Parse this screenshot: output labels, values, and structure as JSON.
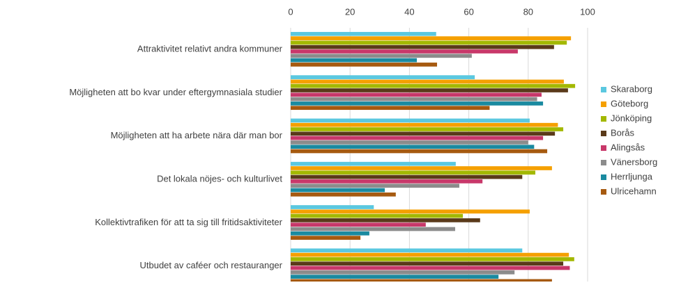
{
  "chart_data": {
    "type": "barh",
    "categories": [
      "Attraktivitet relativt andra kommuner",
      "Möjligheten att bo kvar under eftergymnasiala studier",
      "Möjligheten att ha arbete nära där man bor",
      "Det lokala nöjes- och kulturlivet",
      "Kollektivtrafiken för att ta sig till fritidsaktiviteter",
      "Utbudet av caféer och restauranger"
    ],
    "series": [
      {
        "name": "Skaraborg",
        "color": "#5bc8e0",
        "values": [
          49,
          62,
          80.5,
          55.6,
          28,
          78
        ]
      },
      {
        "name": "Göteborg",
        "color": "#f5a000",
        "values": [
          94.4,
          92,
          90,
          88,
          80.5,
          93.7
        ]
      },
      {
        "name": "Jönköping",
        "color": "#a3b800",
        "values": [
          93,
          95.8,
          91.8,
          82.4,
          58,
          95.5
        ]
      },
      {
        "name": "Borås",
        "color": "#5a3a1a",
        "values": [
          88.7,
          93.4,
          89,
          78,
          63.8,
          91.8
        ]
      },
      {
        "name": "Alingsås",
        "color": "#c8386a",
        "values": [
          76.5,
          84.5,
          85,
          64.6,
          45.5,
          94
        ]
      },
      {
        "name": "Vänersborg",
        "color": "#8c8c8c",
        "values": [
          61,
          83,
          80,
          56.8,
          55.4,
          75.4
        ]
      },
      {
        "name": "Herrljunga",
        "color": "#1a8aa0",
        "values": [
          42.5,
          85,
          82,
          31.7,
          26.5,
          70
        ]
      },
      {
        "name": "Ulricehamn",
        "color": "#a65a10",
        "values": [
          49.3,
          67,
          86.4,
          35.4,
          23.5,
          88
        ]
      }
    ],
    "xlim": [
      0,
      100
    ],
    "xticks": [
      0,
      20,
      40,
      60,
      80,
      100
    ],
    "grid": true,
    "legend": "right"
  }
}
